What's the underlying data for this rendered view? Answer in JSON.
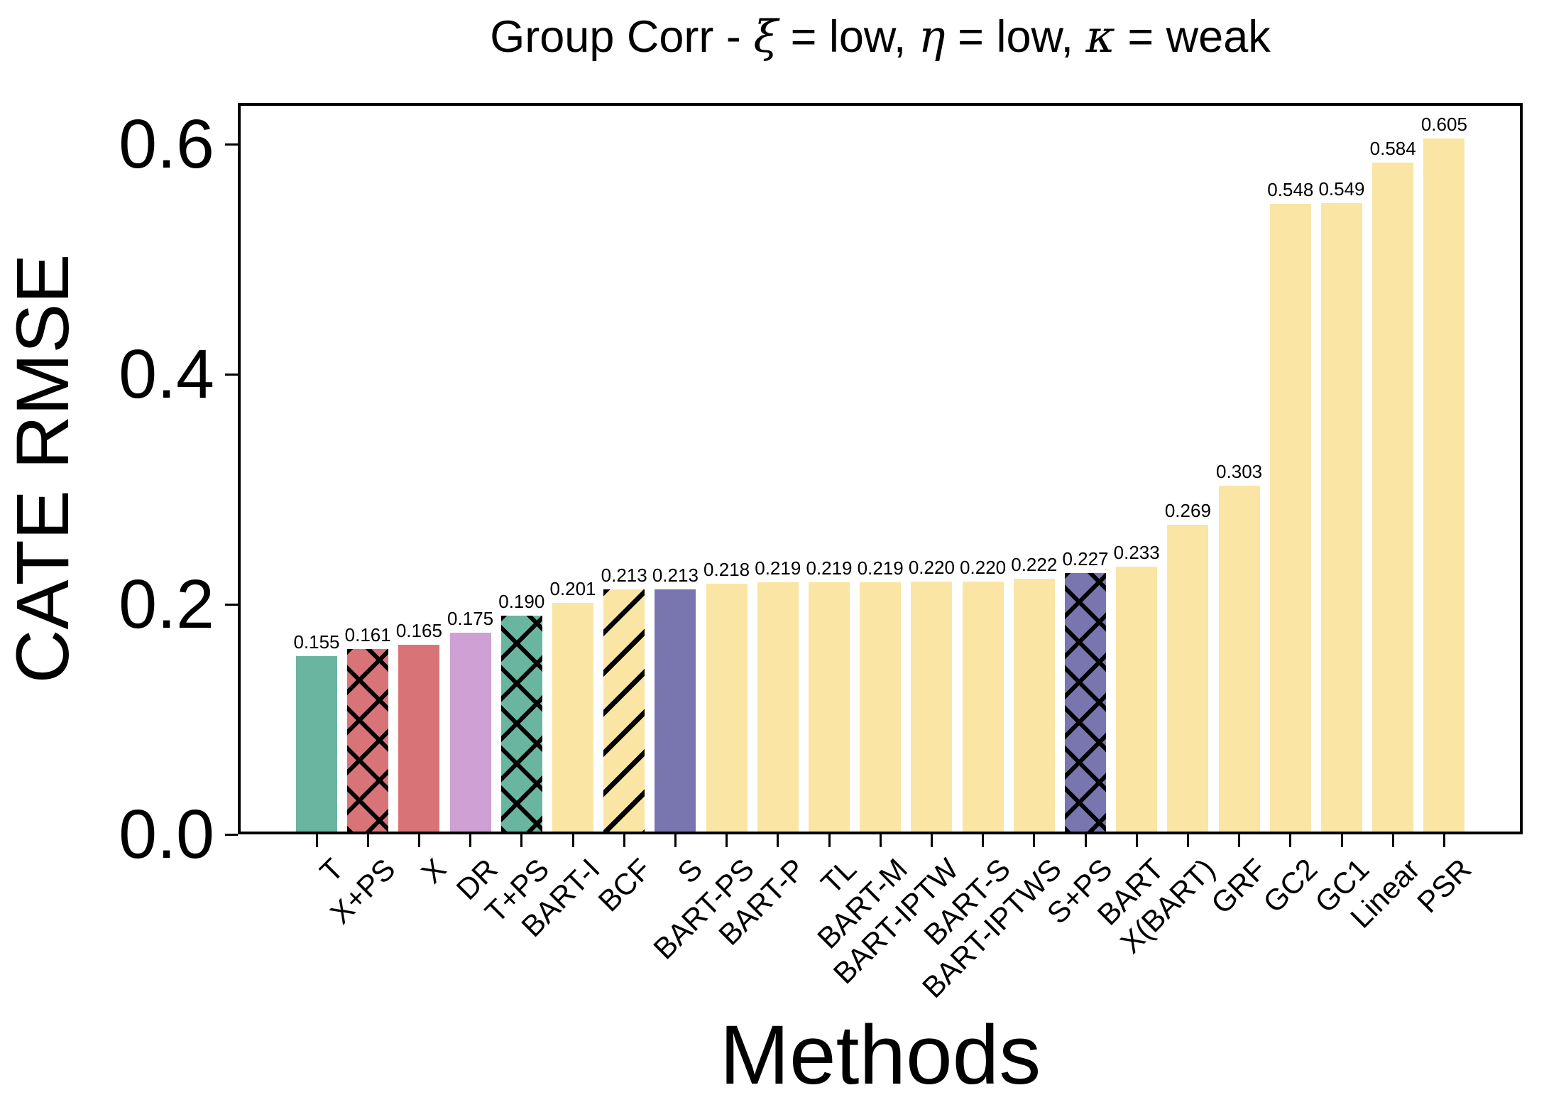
{
  "figure": {
    "title_segments": [
      {
        "text": "Group Corr - ",
        "italic": false
      },
      {
        "text": "ξ",
        "italic": true
      },
      {
        "text": " = low, ",
        "italic": false
      },
      {
        "text": "η",
        "italic": true
      },
      {
        "text": " = low, ",
        "italic": false
      },
      {
        "text": "κ",
        "italic": true
      },
      {
        "text": " = weak",
        "italic": false
      }
    ]
  },
  "chart_data": {
    "type": "bar",
    "title": "Group Corr - ξ = low, η = low, κ = weak",
    "xlabel": "Methods",
    "ylabel": "CATE RMSE",
    "ylim": [
      0,
      0.635
    ],
    "yticks": [
      0.0,
      0.2,
      0.4,
      0.6
    ],
    "ytick_labels": [
      "0.0",
      "0.2",
      "0.4",
      "0.6"
    ],
    "grid": false,
    "legend_position": "none",
    "categories": [
      "T",
      "X+PS",
      "X",
      "DR",
      "T+PS",
      "BART-I",
      "BCF",
      "S",
      "BART-PS",
      "BART-P",
      "TL",
      "BART-M",
      "BART-IPTW",
      "BART-S",
      "BART-IPTWS",
      "S+PS",
      "BART",
      "X(BART)",
      "GRF",
      "GC2",
      "GC1",
      "Linear",
      "PSR"
    ],
    "values": [
      0.155,
      0.161,
      0.165,
      0.175,
      0.19,
      0.201,
      0.213,
      0.213,
      0.218,
      0.219,
      0.219,
      0.219,
      0.22,
      0.22,
      0.222,
      0.227,
      0.233,
      0.269,
      0.303,
      0.548,
      0.549,
      0.584,
      0.605
    ],
    "value_labels": [
      "0.155",
      "0.161",
      "0.165",
      "0.175",
      "0.190",
      "0.201",
      "0.213",
      "0.213",
      "0.218",
      "0.219",
      "0.219",
      "0.219",
      "0.220",
      "0.220",
      "0.222",
      "0.227",
      "0.233",
      "0.269",
      "0.303",
      "0.548",
      "0.549",
      "0.584",
      "0.605"
    ],
    "bar_colors": [
      "#69b5a0",
      "#d87478",
      "#d87478",
      "#cea0d3",
      "#69b5a0",
      "#fae5a5",
      "#fae5a5",
      "#7975af",
      "#fae5a5",
      "#fae5a5",
      "#fae5a5",
      "#fae5a5",
      "#fae5a5",
      "#fae5a5",
      "#fae5a5",
      "#7975af",
      "#fae5a5",
      "#fae5a5",
      "#fae5a5",
      "#fae5a5",
      "#fae5a5",
      "#fae5a5",
      "#fae5a5"
    ],
    "bar_hatches": [
      "none",
      "cross",
      "none",
      "none",
      "cross",
      "none",
      "diag",
      "none",
      "none",
      "none",
      "none",
      "none",
      "none",
      "none",
      "none",
      "cross",
      "none",
      "none",
      "none",
      "none",
      "none",
      "none",
      "none"
    ],
    "palette": {
      "teal": "#69b5a0",
      "red": "#d87478",
      "plum": "#cea0d3",
      "yellow": "#fae5a5",
      "purple": "#7975af",
      "hatch_line": "#000000",
      "axis": "#000000",
      "background": "#ffffff"
    }
  }
}
